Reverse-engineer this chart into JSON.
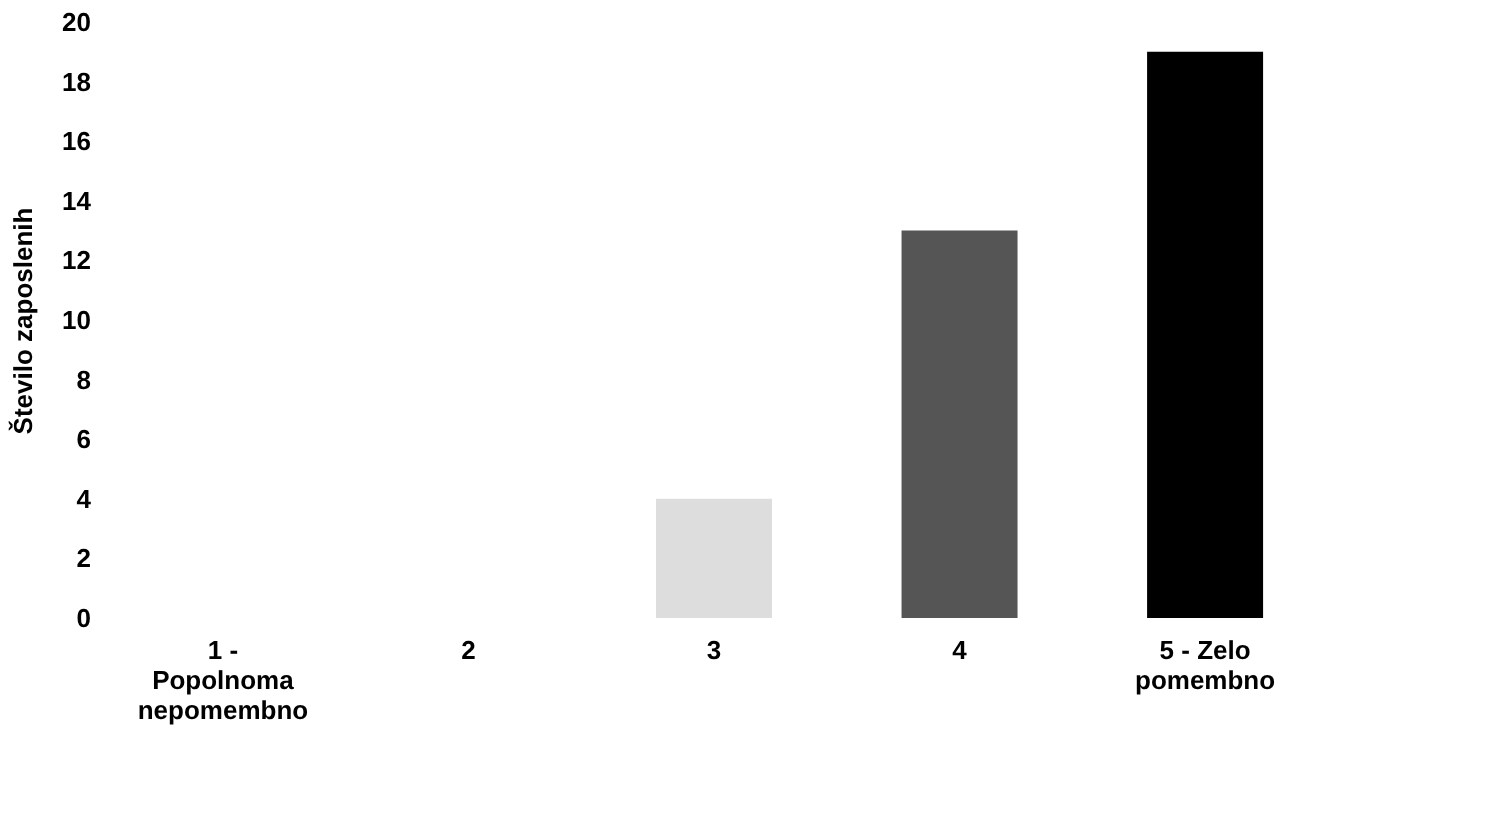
{
  "chart_data": {
    "type": "bar",
    "ylabel": "Število zaposlenih",
    "categories": [
      "1 - Popolnoma nepomembno",
      "2",
      "3",
      "4",
      "5 - Zelo pomembno"
    ],
    "values": [
      0,
      0,
      4,
      13,
      19
    ],
    "colors": [
      "#bbbbbb",
      "#bbbbbb",
      "#dddddd",
      "#555555",
      "#000000"
    ],
    "ylim": [
      0,
      20
    ],
    "yticks": [
      0,
      2,
      4,
      6,
      8,
      10,
      12,
      14,
      16,
      18,
      20
    ],
    "grid": false
  }
}
